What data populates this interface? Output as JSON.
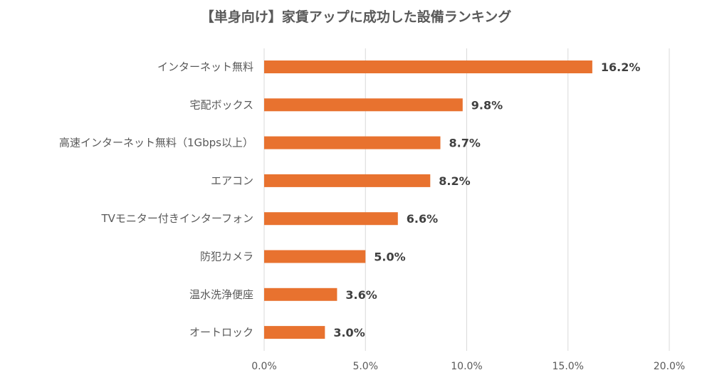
{
  "chart_data": {
    "type": "bar",
    "orientation": "horizontal",
    "title": "【単身向け】家賃アップに成功した設備ランキング",
    "categories": [
      "インターネット無料",
      "宅配ボックス",
      "高速インターネット無料（1Gbps以上）",
      "エアコン",
      "TVモニター付きインターフォン",
      "防犯カメラ",
      "温水洗浄便座",
      "オートロック"
    ],
    "values": [
      16.2,
      9.8,
      8.7,
      8.2,
      6.6,
      5.0,
      3.6,
      3.0
    ],
    "value_labels": [
      "16.2%",
      "9.8%",
      "8.7%",
      "8.2%",
      "6.6%",
      "5.0%",
      "3.6%",
      "3.0%"
    ],
    "xlim": [
      0,
      20
    ],
    "xticks": [
      0,
      5,
      10,
      15,
      20
    ],
    "xtick_labels": [
      "0.0%",
      "5.0%",
      "10.0%",
      "15.0%",
      "20.0%"
    ],
    "xlabel": "",
    "ylabel": "",
    "grid": "vertical",
    "legend": "none",
    "bar_color": "#E8722F"
  }
}
